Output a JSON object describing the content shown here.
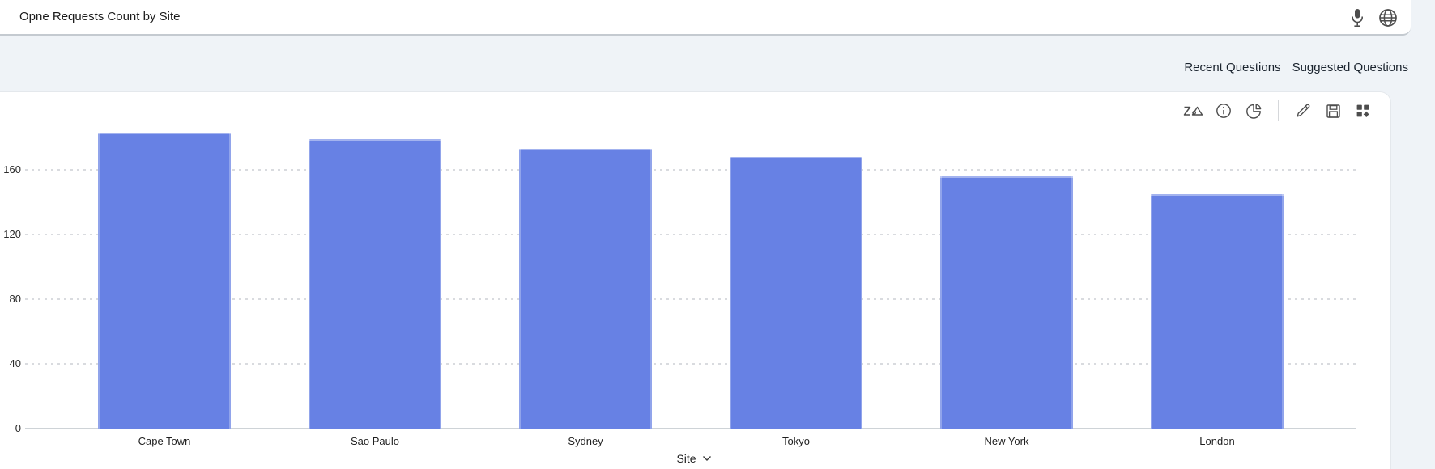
{
  "header": {
    "query": "Opne Requests Count by Site",
    "icons": [
      "microphone",
      "globe"
    ]
  },
  "subheader": {
    "recent_label": "Recent Questions",
    "suggested_label": "Suggested Questions"
  },
  "toolbar": {
    "icons": [
      "zia",
      "info",
      "pie-chart",
      "edit",
      "save",
      "add-to-dashboard"
    ]
  },
  "chart_data": {
    "type": "bar",
    "title": "Opne Requests Count by Site",
    "categories": [
      "Cape Town",
      "Sao Paulo",
      "Sydney",
      "Tokyo",
      "New York",
      "London"
    ],
    "values": [
      183,
      179,
      173,
      168,
      156,
      145
    ],
    "xlabel": "Site",
    "ylabel": "",
    "yticks": [
      0,
      40,
      80,
      120,
      160
    ],
    "ylim": [
      0,
      200
    ],
    "grid": "horizontal-dotted",
    "legend": "none",
    "bar_color": "#6781e4"
  },
  "colors": {
    "page_bg": "#eff3f7",
    "card_bg": "#ffffff",
    "bar": "#6781e4",
    "axis_line": "#ced3d7",
    "icon": "#4d4d4d"
  }
}
